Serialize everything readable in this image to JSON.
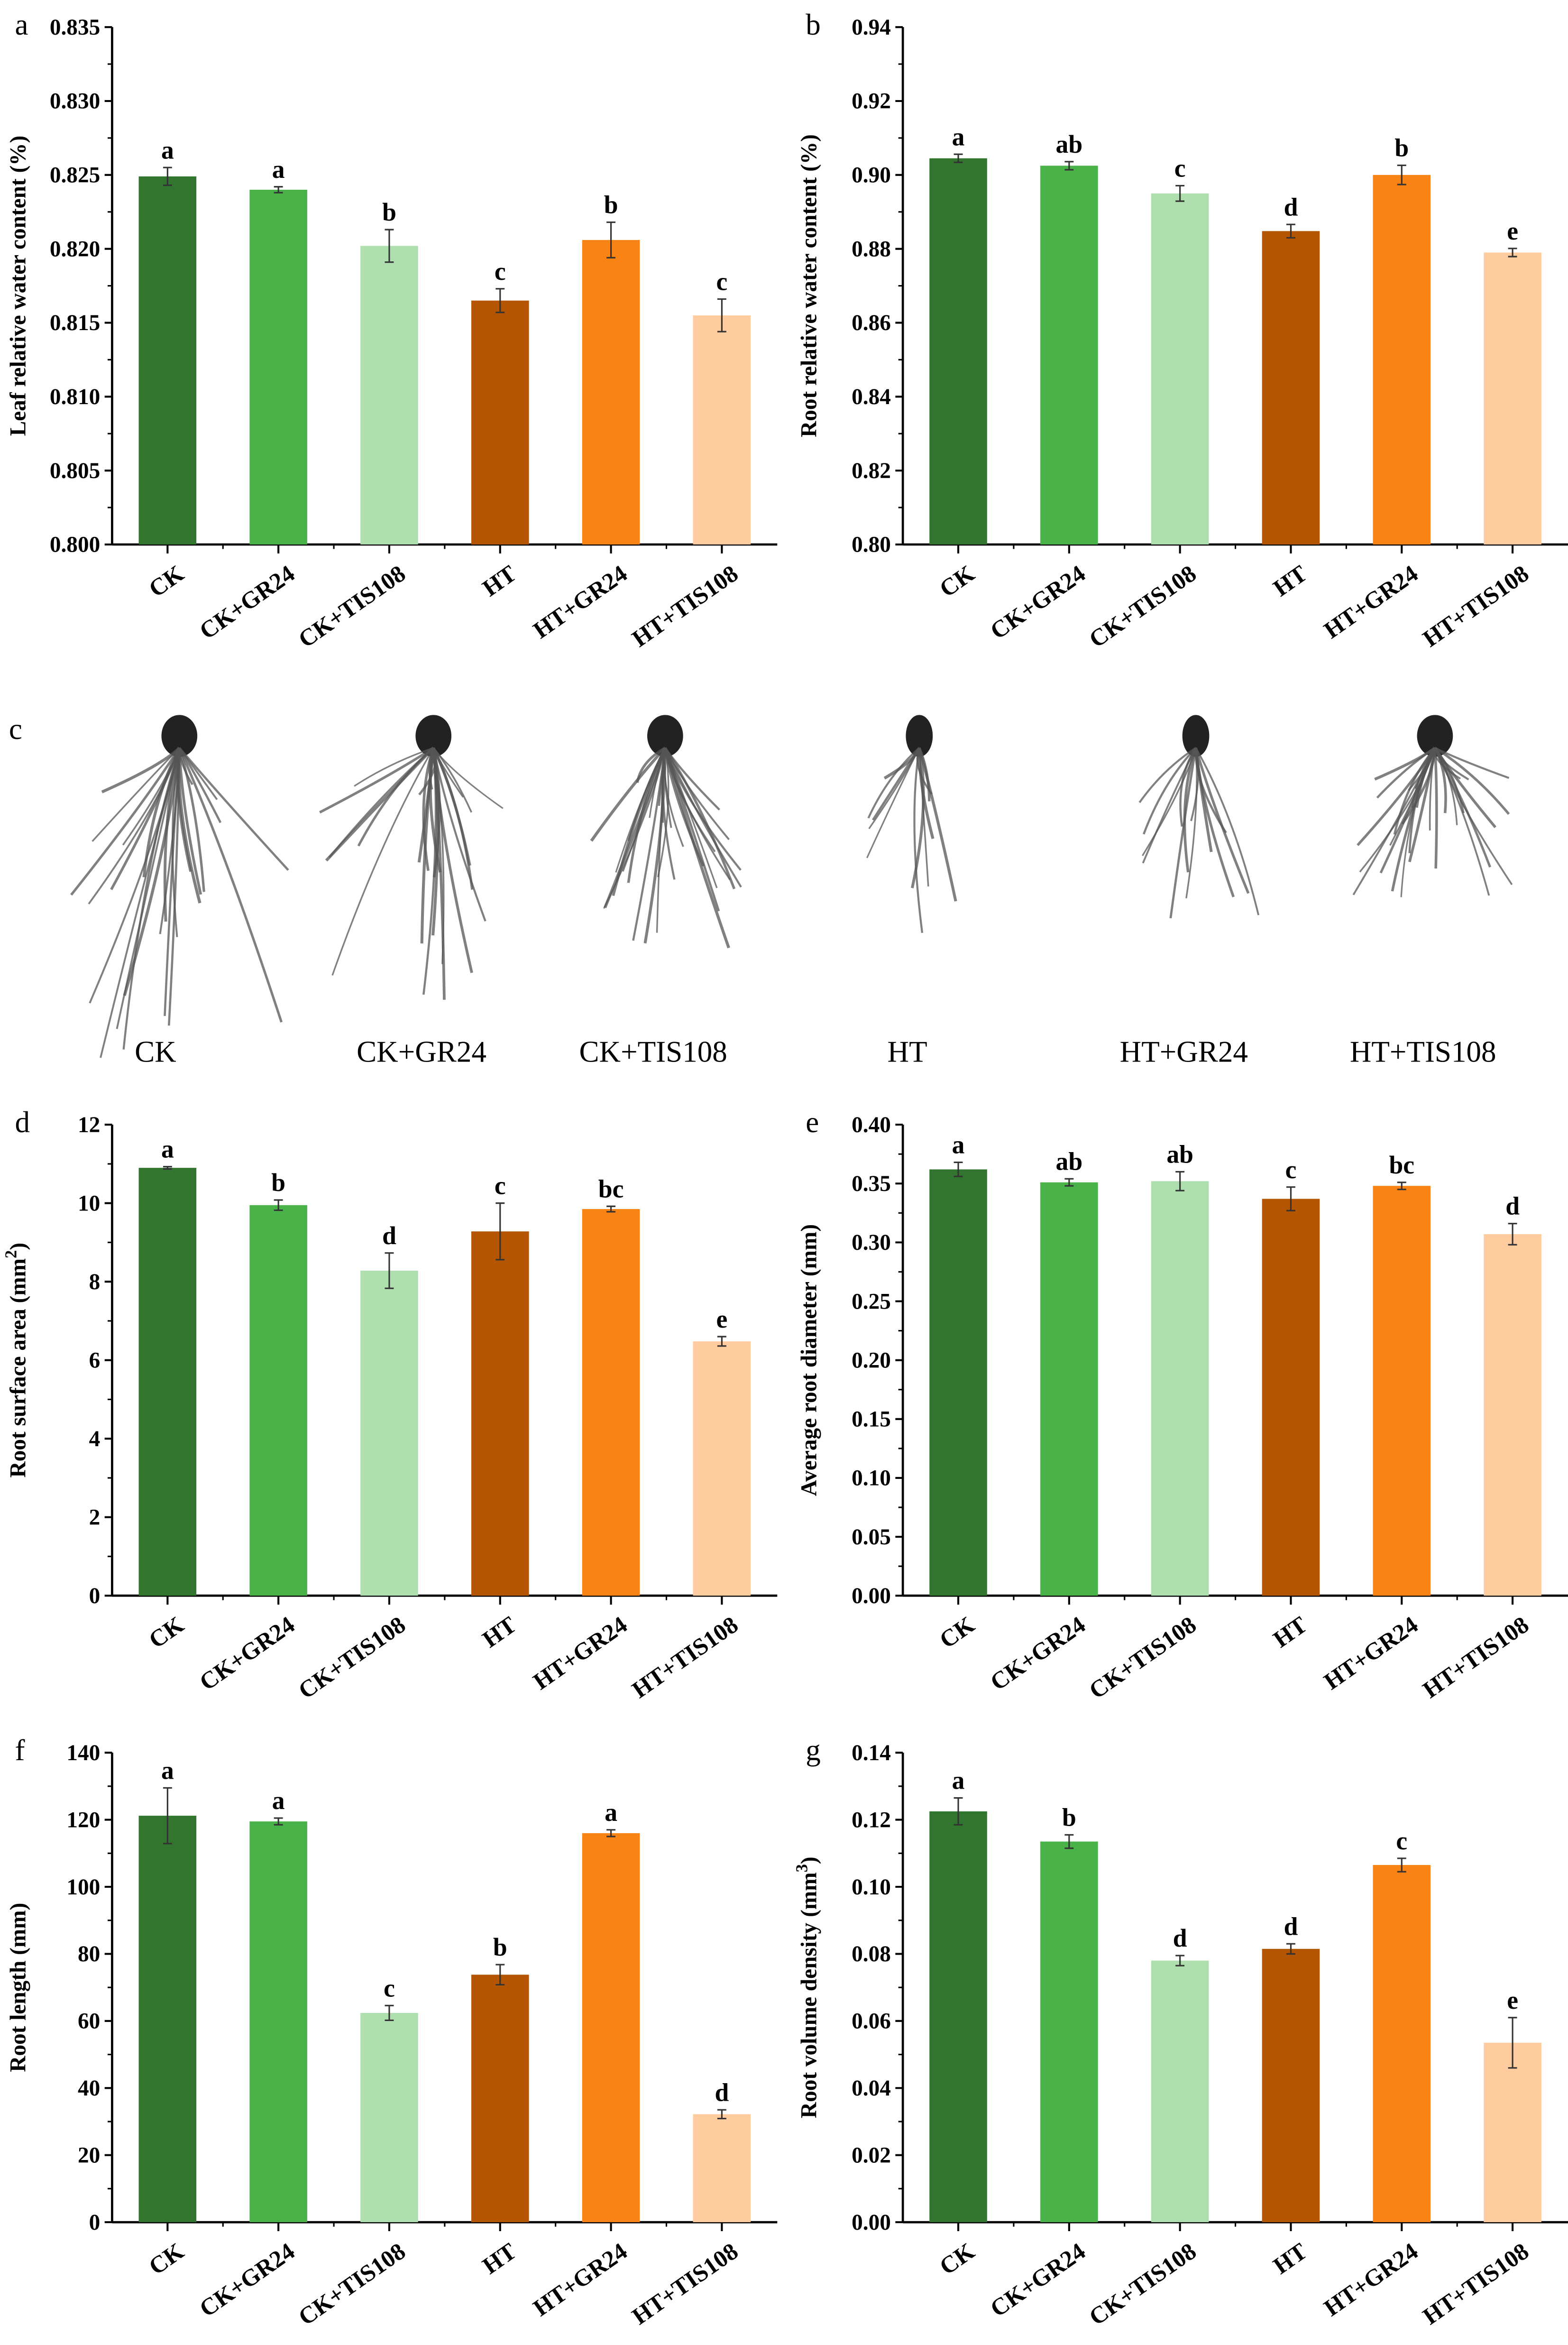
{
  "colors": [
    "#31752f",
    "#49b248",
    "#b0dfaf",
    "#b45502",
    "#fa8315",
    "#fecc9f"
  ],
  "categories": [
    "CK",
    "CK+GR24",
    "CK+TIS108",
    "HT",
    "HT+GR24",
    "HT+TIS108"
  ],
  "photo_panel": {
    "label": "c",
    "captions": [
      "CK",
      "CK+GR24",
      "CK+TIS108",
      "HT",
      "HT+GR24",
      "HT+TIS108"
    ]
  },
  "chart_data": [
    {
      "panel": "a",
      "type": "bar",
      "ylabel": "Leaf relative water content (%)",
      "ylabel_sup": "",
      "ylabel_end": "",
      "ylim": [
        0.8,
        0.835
      ],
      "yticks": [
        "0.800",
        "0.805",
        "0.810",
        "0.815",
        "0.820",
        "0.825",
        "0.830",
        "0.835"
      ],
      "values": [
        0.8249,
        0.824,
        0.8202,
        0.8165,
        0.8206,
        0.8155
      ],
      "errors": [
        0.0006,
        0.0002,
        0.0011,
        0.0008,
        0.0012,
        0.0011
      ],
      "letters": [
        "a",
        "a",
        "b",
        "c",
        "b",
        "c"
      ],
      "grid": false
    },
    {
      "panel": "b",
      "type": "bar",
      "ylabel": "Root relative water content (%)",
      "ylabel_sup": "",
      "ylabel_end": "",
      "ylim": [
        0.8,
        0.94
      ],
      "yticks": [
        "0.80",
        "0.82",
        "0.84",
        "0.86",
        "0.88",
        "0.90",
        "0.92",
        "0.94"
      ],
      "values": [
        0.9045,
        0.9025,
        0.895,
        0.8848,
        0.9,
        0.879
      ],
      "errors": [
        0.0011,
        0.0011,
        0.0021,
        0.0018,
        0.0026,
        0.0011
      ],
      "letters": [
        "a",
        "ab",
        "c",
        "d",
        "b",
        "e"
      ],
      "grid": false
    },
    {
      "panel": "d",
      "type": "bar",
      "ylabel": "Root surface area (mm",
      "ylabel_sup": "2",
      "ylabel_end": ")",
      "ylim": [
        0,
        12
      ],
      "yticks": [
        "0",
        "2",
        "4",
        "6",
        "8",
        "10",
        "12"
      ],
      "values": [
        10.9,
        9.95,
        8.28,
        9.28,
        9.85,
        6.48
      ],
      "errors": [
        0.03,
        0.13,
        0.45,
        0.72,
        0.07,
        0.12
      ],
      "letters": [
        "a",
        "b",
        "d",
        "c",
        "bc",
        "e"
      ],
      "grid": false
    },
    {
      "panel": "e",
      "type": "bar",
      "ylabel": "Average root diameter (mm)",
      "ylabel_sup": "",
      "ylabel_end": "",
      "ylim": [
        0.0,
        0.4
      ],
      "yticks": [
        "0.00",
        "0.05",
        "0.10",
        "0.15",
        "0.20",
        "0.25",
        "0.30",
        "0.35",
        "0.40"
      ],
      "values": [
        0.362,
        0.351,
        0.352,
        0.337,
        0.348,
        0.307
      ],
      "errors": [
        0.006,
        0.003,
        0.008,
        0.01,
        0.003,
        0.009
      ],
      "letters": [
        "a",
        "ab",
        "ab",
        "c",
        "bc",
        "d"
      ],
      "grid": false
    },
    {
      "panel": "f",
      "type": "bar",
      "ylabel": "Root length (mm)",
      "ylabel_sup": "",
      "ylabel_end": "",
      "ylim": [
        0,
        140
      ],
      "yticks": [
        "0",
        "20",
        "40",
        "60",
        "80",
        "100",
        "120",
        "140"
      ],
      "values": [
        121.2,
        119.5,
        62.4,
        73.8,
        116.0,
        32.2
      ],
      "errors": [
        8.3,
        1.0,
        2.2,
        3.0,
        1.0,
        1.3
      ],
      "letters": [
        "a",
        "a",
        "c",
        "b",
        "a",
        "d"
      ],
      "grid": false
    },
    {
      "panel": "g",
      "type": "bar",
      "ylabel": "Root volume density (mm",
      "ylabel_sup": "3",
      "ylabel_end": ")",
      "ylim": [
        0.0,
        0.14
      ],
      "yticks": [
        "0.00",
        "0.02",
        "0.04",
        "0.06",
        "0.08",
        "0.10",
        "0.12",
        "0.14"
      ],
      "values": [
        0.1225,
        0.1135,
        0.078,
        0.0815,
        0.1065,
        0.0535
      ],
      "errors": [
        0.004,
        0.002,
        0.0015,
        0.0015,
        0.002,
        0.0075
      ],
      "letters": [
        "a",
        "b",
        "d",
        "d",
        "c",
        "e"
      ],
      "grid": false
    }
  ]
}
